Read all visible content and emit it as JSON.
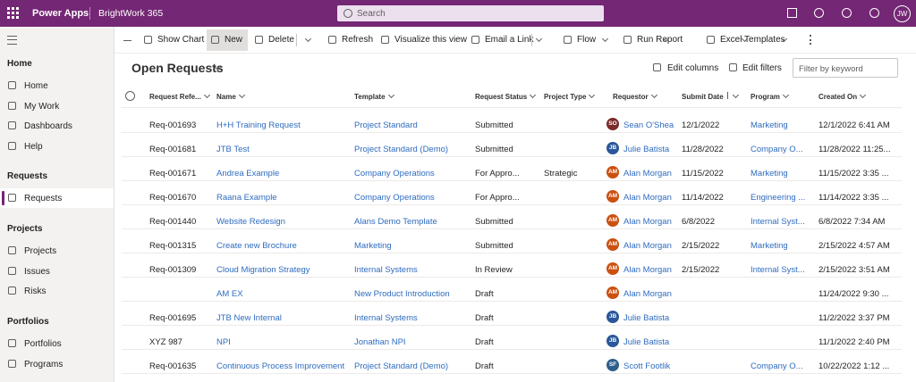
{
  "topbar": {
    "app": "Power Apps",
    "environment": "BrightWork 365",
    "search": "Search",
    "user_initials": "JW"
  },
  "sidebar": {
    "groups": [
      {
        "title": "Home",
        "items": [
          "Home",
          "My Work",
          "Dashboards",
          "Help"
        ]
      },
      {
        "title": "Requests",
        "items": [
          "Requests"
        ]
      },
      {
        "title": "Projects",
        "items": [
          "Projects",
          "Issues",
          "Risks"
        ]
      },
      {
        "title": "Portfolios",
        "items": [
          "Portfolios",
          "Programs"
        ]
      }
    ]
  },
  "toolbar": [
    "Show Chart",
    "New",
    "Delete",
    "Refresh",
    "Visualize this view",
    "Email a Link",
    "Flow",
    "Run Report",
    "Excel Templates"
  ],
  "view": {
    "title": "Open Requests",
    "edit_columns": "Edit columns",
    "edit_filters": "Edit filters",
    "filter_placeholder": "Filter by keyword"
  },
  "table": {
    "columns": [
      "Request Refe...",
      "Name",
      "Template",
      "Request Status",
      "Project Type",
      "Requestor",
      "Submit Date",
      "Program",
      "Created On"
    ],
    "rows": [
      [
        "Req-001693",
        "H+H Training Request",
        "Project Standard",
        "Submitted",
        null,
        {
          "initials": "SO",
          "name": "Sean O'Shea",
          "color": "#7b2a2a"
        },
        "12/1/2022",
        "Marketing",
        "12/1/2022 6:41 AM"
      ],
      [
        "Req-001681",
        "JTB Test",
        "Project Standard (Demo)",
        "Submitted",
        null,
        {
          "initials": "JB",
          "name": "Julie Batista",
          "color": "#2b579a"
        },
        "11/28/2022",
        "Company O...",
        "11/28/2022 11:25..."
      ],
      [
        "Req-001671",
        "Andrea Example",
        "Company Operations",
        "For Appro...",
        "Strategic",
        {
          "initials": "AM",
          "name": "Alan Morgan",
          "color": "#ca5010"
        },
        "11/15/2022",
        "Marketing",
        "11/15/2022 3:35 ..."
      ],
      [
        "Req-001670",
        "Raana Example",
        "Company Operations",
        "For Appro...",
        null,
        {
          "initials": "AM",
          "name": "Alan Morgan",
          "color": "#ca5010"
        },
        "11/14/2022",
        "Engineering ...",
        "11/14/2022 3:35 ..."
      ],
      [
        "Req-001440",
        "Website Redesign",
        "Alans Demo Template",
        "Submitted",
        null,
        {
          "initials": "AM",
          "name": "Alan Morgan",
          "color": "#ca5010"
        },
        "6/8/2022",
        "Internal Syst...",
        "6/8/2022 7:34 AM"
      ],
      [
        "Req-001315",
        "Create new Brochure",
        "Marketing",
        "Submitted",
        null,
        {
          "initials": "AM",
          "name": "Alan Morgan",
          "color": "#ca5010"
        },
        "2/15/2022",
        "Marketing",
        "2/15/2022 4:57 AM"
      ],
      [
        "Req-001309",
        "Cloud Migration Strategy",
        "Internal Systems",
        "In Review",
        null,
        {
          "initials": "AM",
          "name": "Alan Morgan",
          "color": "#ca5010"
        },
        "2/15/2022",
        "Internal Syst...",
        "2/15/2022 3:51 AM"
      ],
      [
        null,
        "AM EX",
        "New Product Introduction",
        "Draft",
        null,
        {
          "initials": "AM",
          "name": "Alan Morgan",
          "color": "#ca5010"
        },
        null,
        null,
        "11/24/2022 9:30 ..."
      ],
      [
        "Req-001695",
        "JTB New Internal",
        "Internal Systems",
        "Draft",
        null,
        {
          "initials": "JB",
          "name": "Julie Batista",
          "color": "#2b579a"
        },
        null,
        null,
        "11/2/2022 3:37 PM"
      ],
      [
        "XYZ 987",
        "NPI",
        "Jonathan NPI",
        "Draft",
        null,
        {
          "initials": "JB",
          "name": "Julie Batista",
          "color": "#2b579a"
        },
        null,
        null,
        "11/1/2022 2:40 PM"
      ],
      [
        "Req-001635",
        "Continuous Process Improvement",
        "Project Standard (Demo)",
        "Draft",
        null,
        {
          "initials": "SF",
          "name": "Scott Footlik",
          "color": "#2e5f8a"
        },
        null,
        "Company O...",
        "10/22/2022 1:12 ..."
      ]
    ]
  }
}
